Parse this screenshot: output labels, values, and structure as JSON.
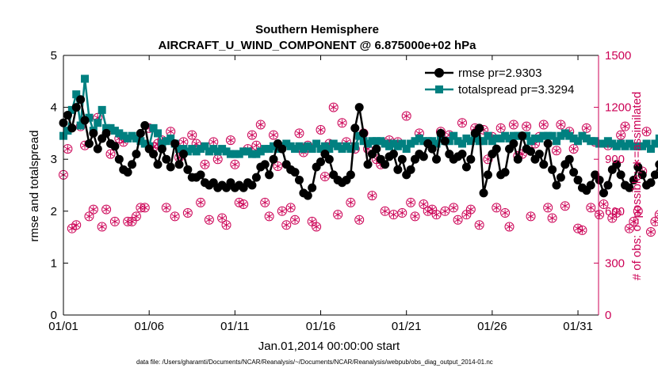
{
  "chart_data": {
    "type": "line",
    "title": "Southern Hemisphere",
    "subtitle": "AIRCRAFT_U_WIND_COMPONENT @ 6.875000e+02 hPa",
    "xlabel": "Jan.01,2014 00:00:00 start",
    "ylabel_left": "rmse and totalspread",
    "ylabel_right": "# of obs: o=possible; ∗=assimilated",
    "footnote": "data file: /Users/gharamti/Documents/NCAR/Reanalysis/~/Documents/NCAR/Reanalysis/webpub/obs_diag_output_2014-01.nc",
    "xlim": [
      1,
      32.2
    ],
    "ylim_left": [
      0,
      5
    ],
    "ylim_right": [
      0,
      1500
    ],
    "x_ticks": [
      1,
      6,
      11,
      16,
      21,
      26,
      31
    ],
    "x_tick_labels": [
      "01/01",
      "01/06",
      "01/11",
      "01/16",
      "01/21",
      "01/26",
      "01/31"
    ],
    "y_ticks_left": [
      "0",
      "1",
      "2",
      "3",
      "4",
      "5"
    ],
    "y_ticks_right": [
      "0",
      "300",
      "600",
      "900",
      "1200",
      "1500"
    ],
    "legend": {
      "position": "top-right",
      "entries": [
        "rmse pr=2.9303",
        "totalspread pr=3.3294"
      ]
    },
    "colors": {
      "rmse": "#000000",
      "totalspread": "#008080",
      "obs": "#cc0055"
    },
    "x_step_days": 0.25,
    "series": [
      {
        "name": "rmse",
        "values": [
          3.7,
          3.85,
          3.6,
          4.0,
          4.15,
          3.75,
          3.3,
          3.5,
          3.2,
          3.4,
          3.5,
          3.3,
          3.25,
          3.0,
          2.8,
          2.75,
          2.9,
          3.1,
          3.5,
          3.65,
          3.2,
          3.1,
          2.9,
          3.2,
          3.0,
          2.85,
          3.3,
          2.9,
          3.1,
          2.8,
          2.65,
          2.65,
          2.7,
          2.55,
          2.5,
          2.55,
          2.45,
          2.5,
          2.45,
          2.55,
          2.45,
          2.5,
          2.45,
          2.55,
          2.5,
          2.65,
          2.85,
          2.9,
          2.7,
          3.0,
          3.3,
          3.2,
          2.9,
          2.8,
          2.75,
          2.6,
          2.35,
          2.3,
          2.45,
          2.85,
          2.95,
          3.1,
          3.0,
          2.7,
          2.6,
          2.55,
          2.6,
          2.7,
          3.6,
          4.0,
          3.5,
          2.9,
          3.1,
          3.2,
          3.0,
          2.9,
          3.05,
          3.1,
          2.8,
          3.0,
          2.7,
          2.8,
          3.0,
          3.1,
          3.05,
          3.3,
          3.2,
          3.0,
          3.5,
          3.35,
          3.1,
          3.0,
          3.05,
          3.1,
          2.85,
          3.0,
          3.5,
          3.6,
          2.35,
          2.7,
          3.1,
          3.2,
          2.7,
          2.75,
          3.2,
          3.3,
          3.0,
          3.45,
          3.2,
          3.15,
          3.0,
          3.1,
          2.9,
          3.3,
          2.8,
          2.5,
          2.65,
          2.9,
          3.0,
          2.75,
          2.6,
          2.45,
          2.4,
          2.5,
          2.7,
          2.6,
          2.35,
          2.5,
          2.8,
          2.9,
          2.7,
          2.5,
          2.45,
          2.6,
          2.85,
          2.7,
          2.5,
          2.55,
          2.7,
          2.9,
          2.75,
          2.6,
          2.5,
          2.9,
          2.8,
          2.7,
          3.0,
          3.05,
          3.3,
          2.7,
          2.95,
          3.1,
          3.2,
          2.75
        ],
        "label": "rmse pr=2.9303"
      },
      {
        "name": "totalspread",
        "values": [
          3.45,
          3.55,
          3.95,
          4.25,
          3.65,
          4.55,
          3.8,
          3.55,
          3.7,
          3.95,
          3.6,
          3.6,
          3.55,
          3.5,
          3.45,
          3.4,
          3.45,
          3.4,
          3.35,
          3.3,
          3.25,
          3.6,
          3.5,
          3.3,
          3.35,
          3.4,
          3.3,
          3.2,
          3.2,
          3.15,
          3.2,
          3.15,
          3.2,
          3.25,
          3.15,
          3.2,
          3.15,
          3.2,
          3.15,
          3.1,
          3.1,
          3.1,
          3.15,
          3.15,
          3.1,
          3.1,
          3.15,
          3.2,
          3.2,
          3.25,
          3.2,
          3.25,
          3.3,
          3.25,
          3.2,
          3.25,
          3.2,
          3.25,
          3.2,
          3.3,
          3.2,
          3.25,
          3.2,
          3.3,
          3.25,
          3.2,
          3.25,
          3.2,
          3.25,
          3.45,
          3.35,
          3.3,
          3.35,
          3.35,
          3.35,
          3.3,
          3.25,
          3.3,
          3.25,
          3.3,
          3.2,
          3.3,
          3.35,
          3.4,
          3.35,
          3.35,
          3.35,
          3.3,
          3.4,
          3.35,
          3.35,
          3.45,
          3.35,
          3.3,
          3.4,
          3.35,
          3.4,
          3.35,
          3.35,
          3.45,
          3.35,
          3.4,
          3.4,
          3.45,
          3.4,
          3.45,
          3.45,
          3.45,
          3.45,
          3.35,
          3.4,
          3.4,
          3.45,
          3.45,
          3.45,
          3.35,
          3.45,
          3.5,
          3.45,
          3.4,
          3.35,
          3.45,
          3.4,
          3.35,
          3.35,
          3.3,
          3.3,
          3.35,
          3.3,
          3.25,
          3.3,
          3.25,
          3.3,
          3.25,
          3.25,
          3.25,
          3.3,
          3.2,
          3.3,
          3.4,
          3.3,
          3.2,
          3.25,
          3.2,
          3.25,
          3.3,
          3.2,
          3.3,
          3.25,
          3.2,
          3.3,
          3.2,
          3.25,
          3.2
        ],
        "label": "totalspread pr=3.3294"
      },
      {
        "name": "obs_count",
        "values": [
          810,
          960,
          500,
          520,
          1090,
          980,
          570,
          610,
          1140,
          510,
          610,
          930,
          540,
          1020,
          1000,
          540,
          540,
          570,
          620,
          620,
          1080,
          970,
          990,
          1010,
          620,
          1060,
          570,
          910,
          1000,
          590,
          1040,
          990,
          650,
          870,
          550,
          1000,
          900,
          560,
          520,
          1010,
          870,
          650,
          640,
          960,
          1040,
          980,
          1100,
          650,
          570,
          1040,
          860,
          600,
          520,
          620,
          550,
          1050,
          940,
          980,
          540,
          510,
          1070,
          800,
          990,
          1200,
          580,
          1110,
          1000,
          650,
          960,
          550,
          1050,
          960,
          690,
          900,
          870,
          600,
          1010,
          580,
          1000,
          590,
          1150,
          650,
          570,
          1050,
          640,
          600,
          610,
          580,
          1060,
          600,
          1040,
          620,
          550,
          1110,
          580,
          610,
          1080,
          520,
          1070,
          900,
          1030,
          620,
          1080,
          590,
          510,
          1100,
          920,
          930,
          1090,
          570,
          990,
          1030,
          1100,
          620,
          560,
          950,
          1100,
          630,
          1060,
          960,
          500,
          490,
          1080,
          620,
          1000,
          580,
          640,
          980,
          560,
          590,
          1040,
          1090,
          500,
          540,
          600,
          830,
          1060,
          480,
          540,
          580,
          1000,
          580,
          380,
          590,
          990,
          1000,
          460,
          490,
          1070,
          380,
          530,
          500,
          900,
          900,
          570,
          630,
          540,
          640,
          450,
          450,
          0
        ],
        "label": "# of obs"
      }
    ]
  }
}
